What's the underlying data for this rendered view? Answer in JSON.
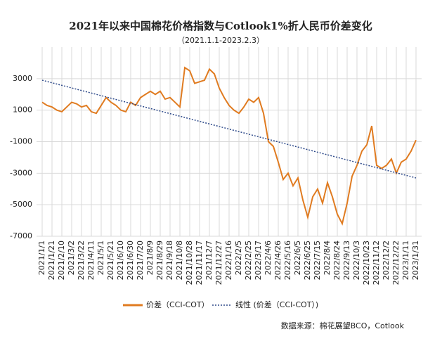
{
  "chart_data": {
    "type": "line",
    "title": "2021年以来中国棉花价格指数与Cotlook1%折人民币价差变化",
    "subtitle": "（2021.1.1-2023.2.3）",
    "source": "数据来源：棉花展望BCO，Cotlook",
    "categories": [
      "2021/1/1",
      null,
      "2021/1/21",
      null,
      "2021/2/10",
      null,
      "2021/3/2",
      null,
      "2021/3/22",
      null,
      "2021/4/11",
      null,
      "2021/5/1",
      null,
      "2021/5/21",
      null,
      "2021/6/10",
      null,
      "2021/6/30",
      null,
      "2021/7/20",
      null,
      "2021/8/9",
      null,
      "2021/8/29",
      null,
      "2021/9/18",
      null,
      "2021/10/8",
      null,
      "2021/10/28",
      null,
      "2021/11/17",
      null,
      "2021/12/7",
      null,
      "2021/12/27",
      null,
      "2022/1/16",
      null,
      "2022/2/5",
      null,
      "2022/2/25",
      null,
      "2022/3/17",
      null,
      "2022/4/6",
      null,
      "2022/4/26",
      null,
      "2022/5/16",
      null,
      "2022/6/5",
      null,
      "2022/6/25",
      null,
      "2022/7/15",
      null,
      "2022/8/4",
      null,
      "2022/8/24",
      null,
      "2022/9/13",
      null,
      "2022/10/3",
      null,
      "2022/10/23",
      null,
      "2022/11/12",
      null,
      "2022/12/2",
      null,
      "2022/12/22",
      null,
      "2023/1/11",
      null,
      "2023/1/31"
    ],
    "series": [
      {
        "name": "价差（CCI-COT）",
        "color": "#e07b20",
        "values": [
          1500,
          1300,
          1200,
          1000,
          900,
          1200,
          1500,
          1400,
          1200,
          1300,
          900,
          800,
          1300,
          1800,
          1500,
          1300,
          1000,
          900,
          1500,
          1300,
          1800,
          2000,
          2200,
          2000,
          2200,
          1700,
          1800,
          1500,
          1200,
          3700,
          3500,
          2700,
          2800,
          2900,
          3600,
          3300,
          2400,
          1800,
          1300,
          1000,
          800,
          1200,
          1700,
          1500,
          1800,
          800,
          -1000,
          -1300,
          -2300,
          -3400,
          -3000,
          -3800,
          -3300,
          -4700,
          -5800,
          -4500,
          -4000,
          -4900,
          -3600,
          -4500,
          -5600,
          -6200,
          -4900,
          -3200,
          -2500,
          -1600,
          -1200,
          0,
          -2500,
          -2700,
          -2500,
          -2100,
          -3000,
          -2300,
          -2100,
          -1600,
          -900
        ]
      }
    ],
    "trendline": {
      "name": "线性 (价差（CCI-COT）)",
      "color": "#2e4a8a",
      "start": 2900,
      "end": -3300
    },
    "ylim": [
      -7000,
      5000
    ],
    "yticks": [
      -7000,
      -5000,
      -3000,
      -1000,
      1000,
      3000
    ],
    "grid": true
  }
}
